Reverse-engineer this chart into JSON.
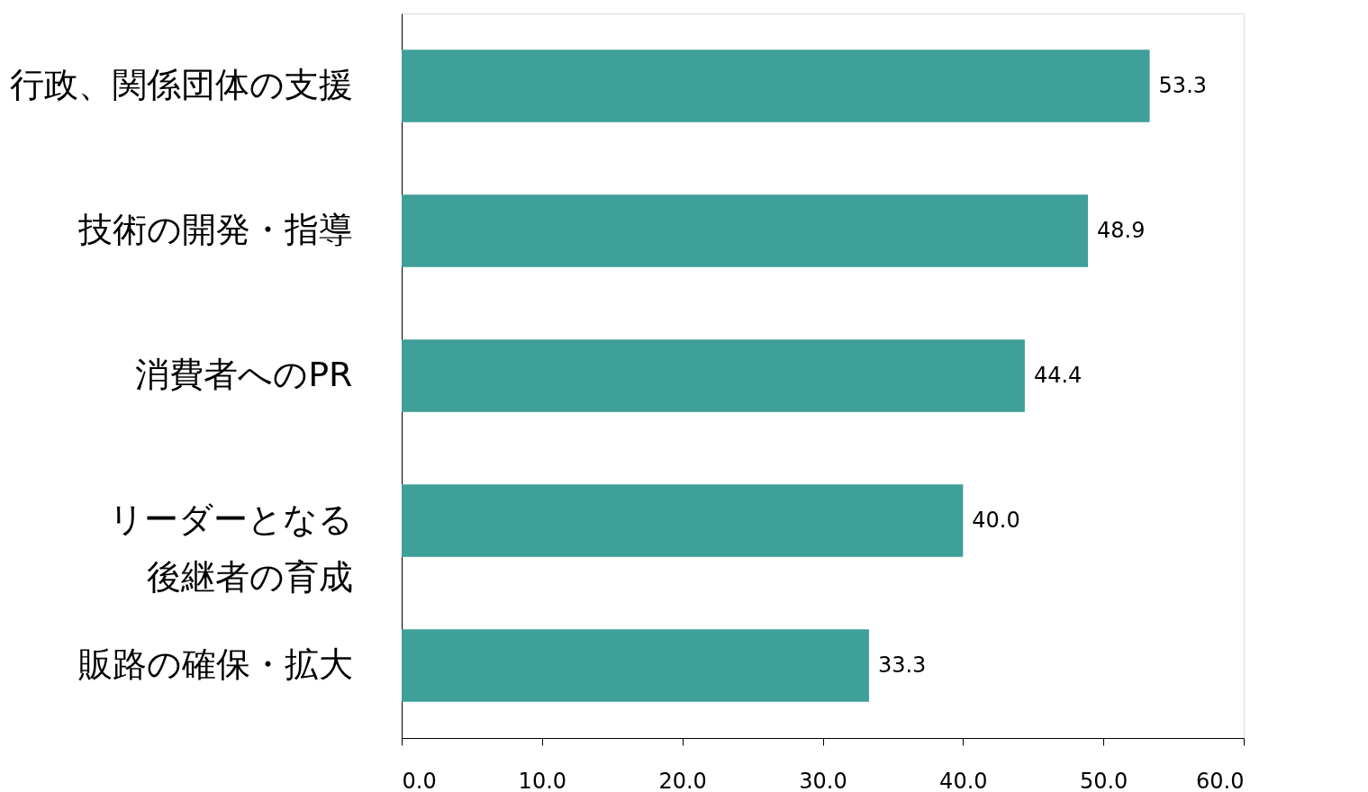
{
  "chart_data": {
    "type": "bar",
    "orientation": "horizontal",
    "categories": [
      "行政、関係団体の支援",
      "技術の開発・指導",
      "消費者へのPR",
      "リーダーとなる後継者の育成",
      "販路の確保・拡大"
    ],
    "values": [
      53.3,
      48.9,
      44.4,
      40.0,
      33.3
    ],
    "value_labels": [
      "53.3",
      "48.9",
      "44.4",
      "40.0",
      "33.3"
    ],
    "color": "#3f9f99",
    "xlim": [
      0,
      60
    ],
    "xticks": [
      {
        "value": 0,
        "label": "0.0"
      },
      {
        "value": 10,
        "label": "10.0"
      },
      {
        "value": 20,
        "label": "20.0"
      },
      {
        "value": 30,
        "label": "30.0"
      },
      {
        "value": 40,
        "label": "40.0"
      },
      {
        "value": 50,
        "label": "50.0"
      },
      {
        "value": 60,
        "label": "60.0"
      }
    ],
    "grid": false
  }
}
